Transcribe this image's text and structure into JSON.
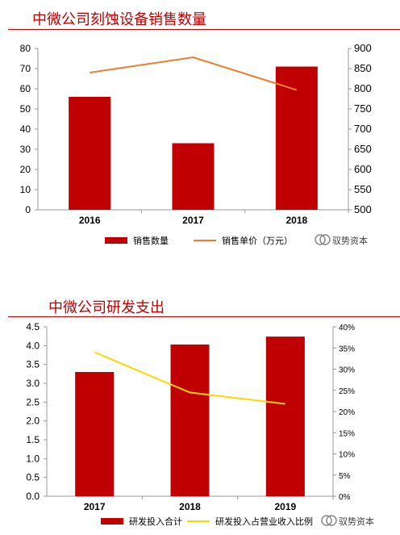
{
  "charts": [
    {
      "title": "中微公司刻蚀设备销售数量",
      "chart_data": {
        "type": "bar",
        "categories": [
          "2016",
          "2017",
          "2018"
        ],
        "ylim": [
          0,
          80
        ],
        "y2lim": [
          500,
          900
        ],
        "y_ticks": [
          "0",
          "10",
          "20",
          "30",
          "40",
          "50",
          "60",
          "70",
          "80"
        ],
        "y2_ticks": [
          "500",
          "550",
          "600",
          "650",
          "700",
          "750",
          "800",
          "850",
          "900"
        ],
        "series": [
          {
            "name": "销售数量",
            "type": "bar",
            "axis": "left",
            "color": "#c00000",
            "values": [
              56,
              33,
              71
            ]
          },
          {
            "name": "销售单价（万元）",
            "type": "line",
            "axis": "right",
            "color": "#ed7d31",
            "values": [
              840,
              878,
              797
            ]
          }
        ],
        "watermark": "驭势资本",
        "legend": "bottom",
        "grid": false
      }
    },
    {
      "title": "中微公司研发支出",
      "chart_data": {
        "type": "bar",
        "categories": [
          "2017",
          "2018",
          "2019"
        ],
        "ylim": [
          0,
          4.5
        ],
        "y2lim": [
          0,
          40
        ],
        "y_ticks": [
          "0.0",
          "0.5",
          "1.0",
          "1.5",
          "2.0",
          "2.5",
          "3.0",
          "3.5",
          "4.0",
          "4.5"
        ],
        "y2_ticks": [
          "0%",
          "5%",
          "10%",
          "15%",
          "20%",
          "25%",
          "30%",
          "35%",
          "40%"
        ],
        "series": [
          {
            "name": "研发投入合计",
            "type": "bar",
            "axis": "left",
            "color": "#c00000",
            "values": [
              3.3,
              4.03,
              4.24
            ]
          },
          {
            "name": "研发投入占营业收入比例",
            "type": "line",
            "axis": "right",
            "color": "#ffd700",
            "values": [
              34,
              24.5,
              21.8
            ]
          }
        ],
        "watermark": "驭势资本",
        "legend": "bottom",
        "grid": false
      }
    }
  ]
}
